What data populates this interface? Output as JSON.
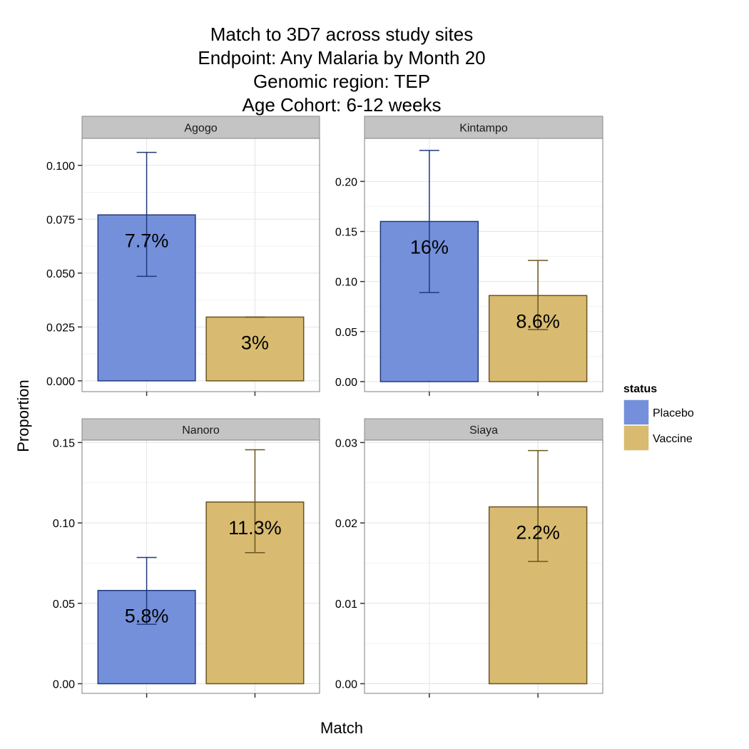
{
  "chart_data": {
    "type": "bar",
    "title_lines": [
      "Match to 3D7 across study sites",
      "Endpoint: Any Malaria by Month 20",
      "Genomic region: TEP",
      "Age Cohort: 6-12 weeks"
    ],
    "xlabel": "Match",
    "ylabel": "Proportion",
    "legend": {
      "title": "status",
      "entries": [
        {
          "name": "Placebo",
          "fill": "#7590da",
          "stroke": "#1f3a7a"
        },
        {
          "name": "Vaccine",
          "fill": "#d8bb70",
          "stroke": "#6b5420"
        }
      ]
    },
    "grid": true,
    "panels": [
      {
        "strip": "Agogo",
        "ylim": [
          -0.005,
          0.1125
        ],
        "yticks": [
          0.0,
          0.025,
          0.05,
          0.075,
          0.1
        ],
        "ytick_labels": [
          "0.000",
          "0.025",
          "0.050",
          "0.075",
          "0.100"
        ],
        "bars": [
          {
            "status": "Placebo",
            "value": 0.077,
            "label": "7.7%",
            "err_low": 0.0485,
            "err_high": 0.106
          },
          {
            "status": "Vaccine",
            "value": 0.0296,
            "label": "3%",
            "err_low": 0.0296,
            "err_high": 0.0296
          }
        ]
      },
      {
        "strip": "Kintampo",
        "ylim": [
          -0.01,
          0.243
        ],
        "yticks": [
          0.0,
          0.05,
          0.1,
          0.15,
          0.2
        ],
        "ytick_labels": [
          "0.00",
          "0.05",
          "0.10",
          "0.15",
          "0.20"
        ],
        "bars": [
          {
            "status": "Placebo",
            "value": 0.16,
            "label": "16%",
            "err_low": 0.089,
            "err_high": 0.231
          },
          {
            "status": "Vaccine",
            "value": 0.086,
            "label": "8.6%",
            "err_low": 0.052,
            "err_high": 0.121
          }
        ]
      },
      {
        "strip": "Nanoro",
        "ylim": [
          -0.006,
          0.1515
        ],
        "yticks": [
          0.0,
          0.05,
          0.1,
          0.15
        ],
        "ytick_labels": [
          "0.00",
          "0.05",
          "0.10",
          "0.15"
        ],
        "bars": [
          {
            "status": "Placebo",
            "value": 0.058,
            "label": "5.8%",
            "err_low": 0.037,
            "err_high": 0.0785
          },
          {
            "status": "Vaccine",
            "value": 0.113,
            "label": "11.3%",
            "err_low": 0.0815,
            "err_high": 0.1455
          }
        ]
      },
      {
        "strip": "Siaya",
        "ylim": [
          -0.0012,
          0.0303
        ],
        "yticks": [
          0.0,
          0.01,
          0.02,
          0.03
        ],
        "ytick_labels": [
          "0.00",
          "0.01",
          "0.02",
          "0.03"
        ],
        "bars": [
          {
            "status": "Vaccine",
            "value": 0.022,
            "label": "2.2%",
            "err_low": 0.0152,
            "err_high": 0.029
          }
        ]
      }
    ]
  }
}
